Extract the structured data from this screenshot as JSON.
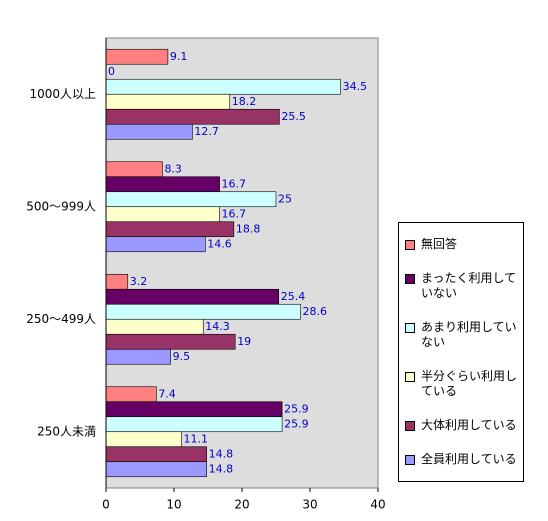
{
  "chart_data": {
    "type": "bar",
    "orientation": "horizontal",
    "categories": [
      "1000人以上",
      "500～999人",
      "250～499人",
      "250人未満"
    ],
    "series": [
      {
        "name": "無回答",
        "color": "#ff8080",
        "values": [
          9.1,
          8.3,
          3.2,
          7.4
        ]
      },
      {
        "name": "まったく利用していない",
        "color": "#660066",
        "values": [
          0,
          16.7,
          25.4,
          25.9
        ]
      },
      {
        "name": "あまり利用していない",
        "color": "#ccffff",
        "values": [
          34.5,
          25,
          28.6,
          25.9
        ]
      },
      {
        "name": "半分ぐらい利用している",
        "color": "#ffffcc",
        "values": [
          18.2,
          16.7,
          14.3,
          11.1
        ]
      },
      {
        "name": "大体利用している",
        "color": "#993366",
        "values": [
          25.5,
          18.8,
          19,
          14.8
        ]
      },
      {
        "name": "全員利用している",
        "color": "#9999ff",
        "values": [
          12.7,
          14.6,
          9.5,
          14.8
        ]
      }
    ],
    "xlim": [
      0,
      40
    ],
    "xticks": [
      0,
      10,
      20,
      30,
      40
    ],
    "grid": false
  }
}
